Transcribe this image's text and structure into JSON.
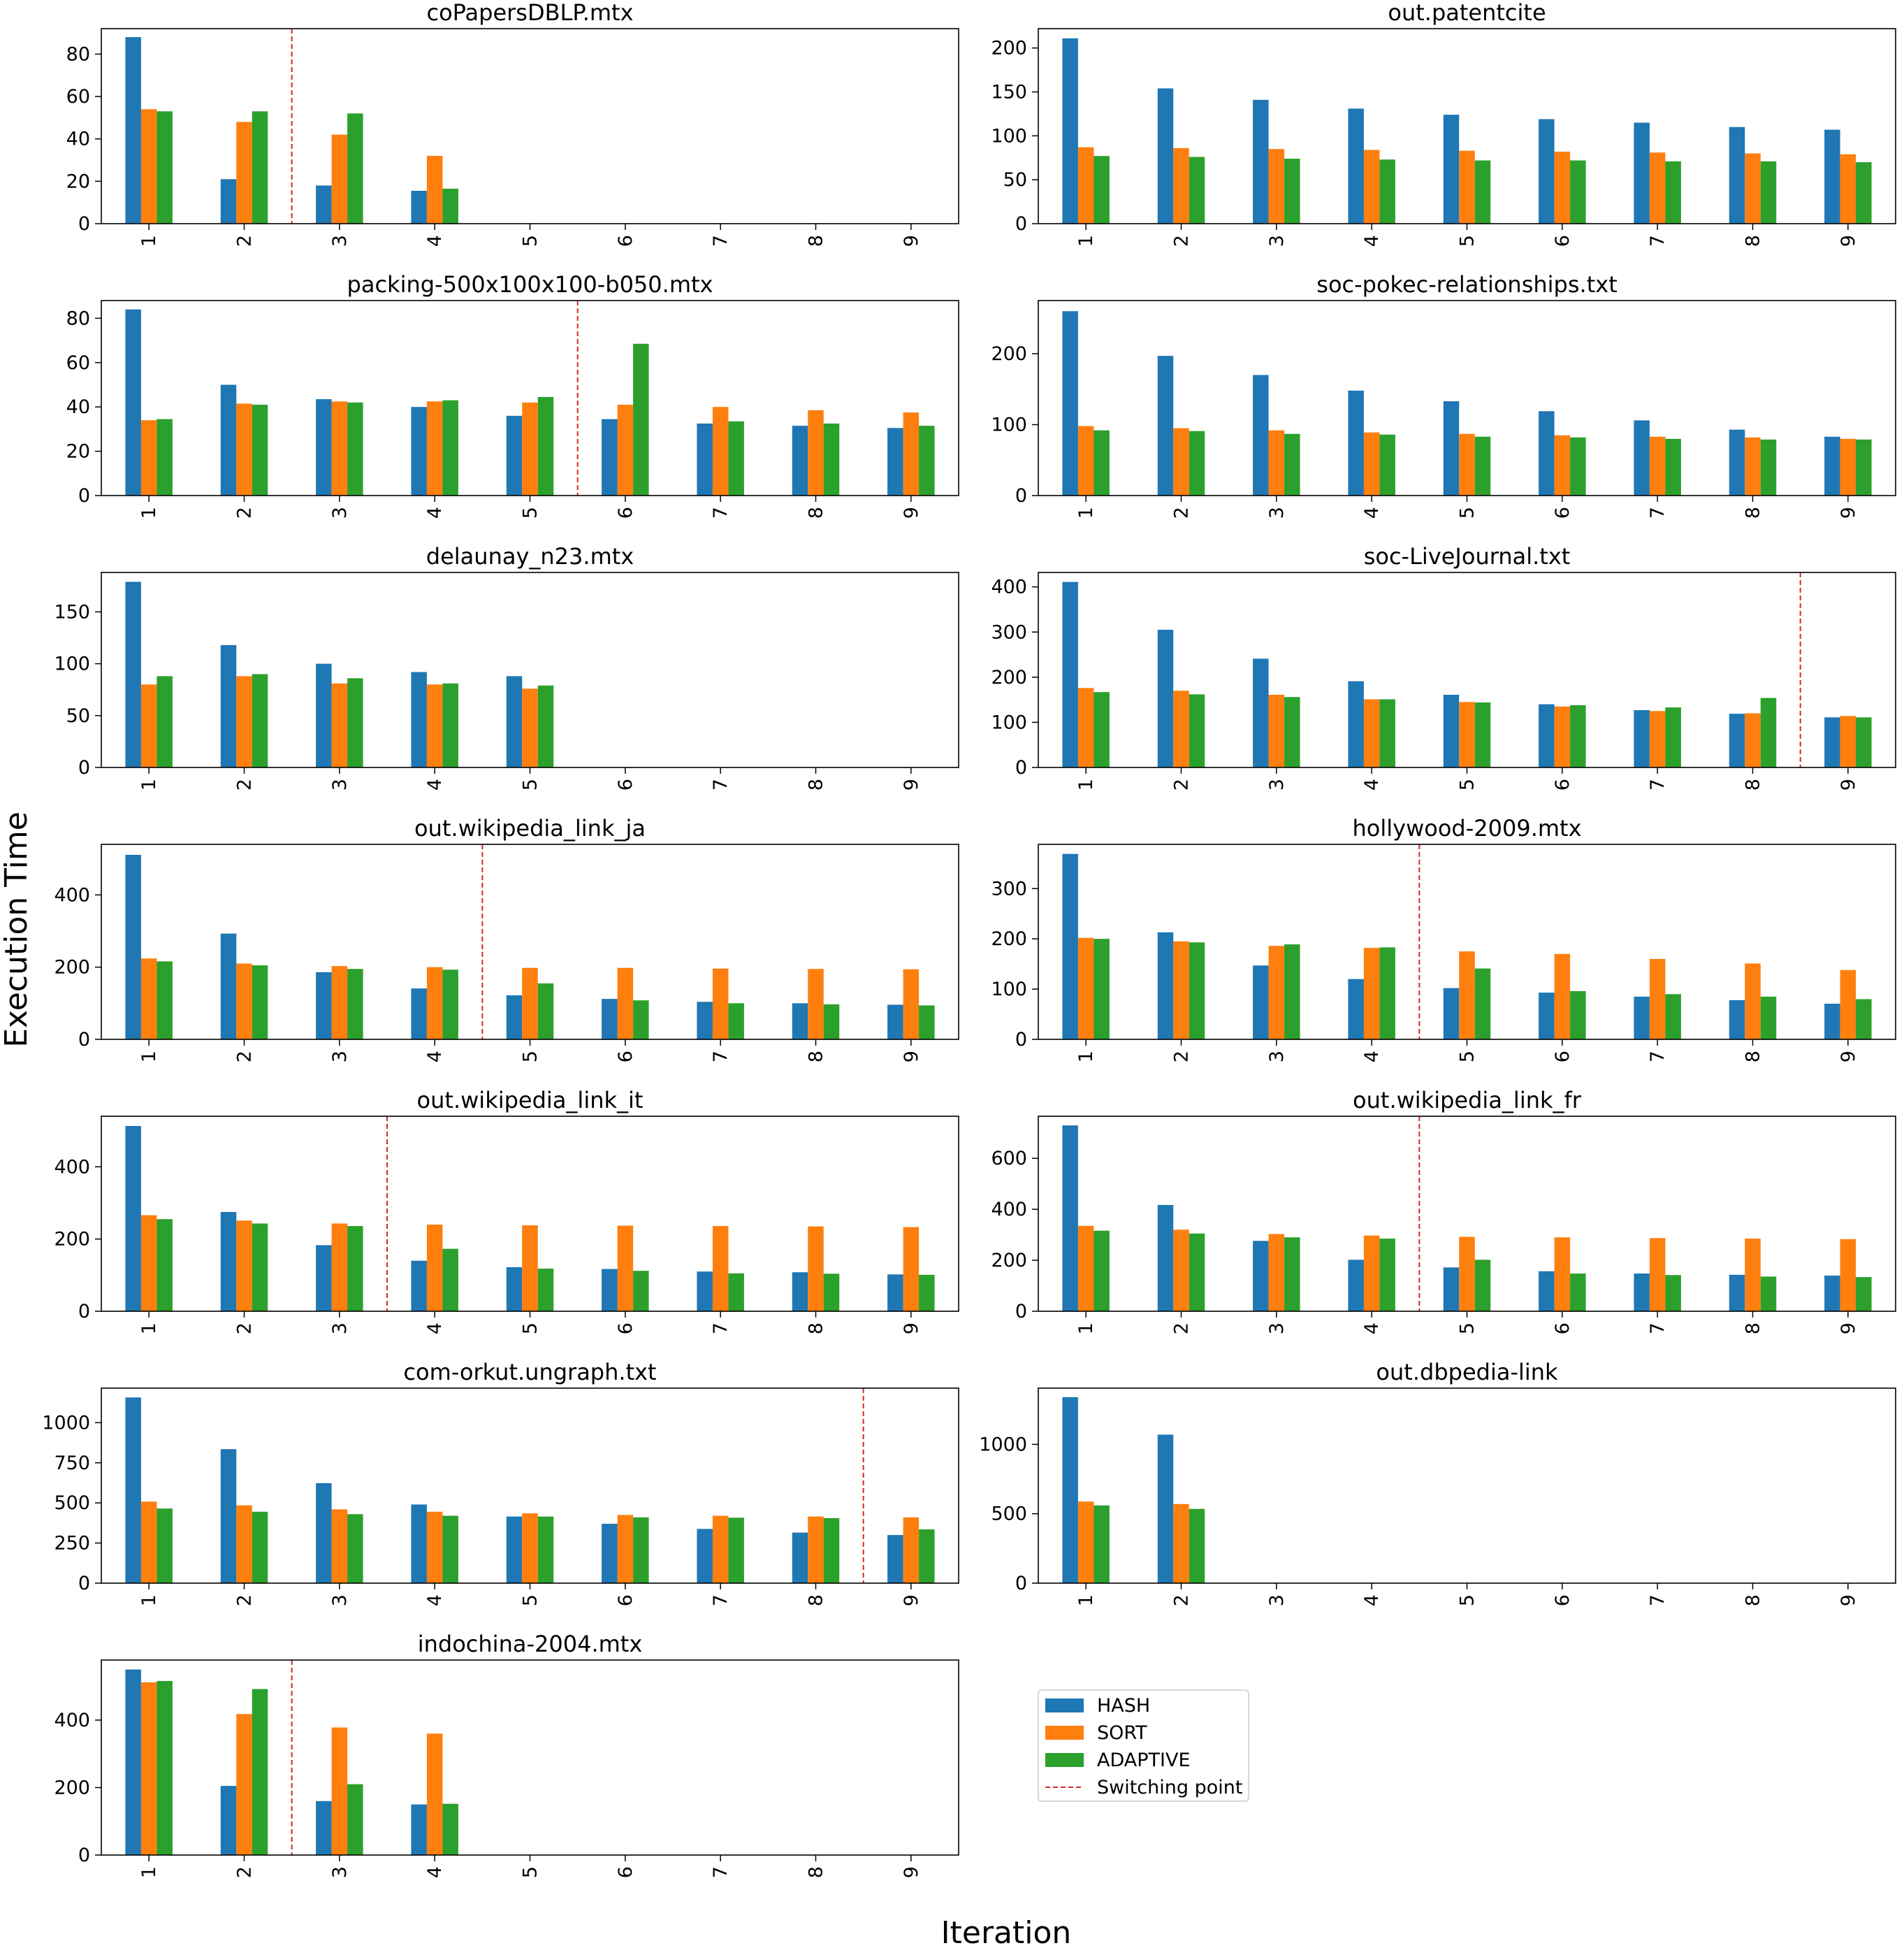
{
  "figure": {
    "ylabel": "Execution Time",
    "xlabel": "Iteration"
  },
  "legend": {
    "position": "below-right-column",
    "items": [
      {
        "label": "HASH",
        "color": "#1f77b4",
        "kind": "bar"
      },
      {
        "label": "SORT",
        "color": "#ff7f0e",
        "kind": "bar"
      },
      {
        "label": "ADAPTIVE",
        "color": "#2ca02c",
        "kind": "bar"
      },
      {
        "label": "Switching point",
        "color": "#d62728",
        "kind": "dashed-line"
      }
    ]
  },
  "chart_data": [
    {
      "type": "bar",
      "title": "coPapersDBLP.mtx",
      "categories": [
        "1",
        "2",
        "3",
        "4",
        "5",
        "6",
        "7",
        "8",
        "9"
      ],
      "ylim": [
        0,
        92
      ],
      "yticks": [
        0,
        20,
        40,
        60,
        80
      ],
      "series": [
        {
          "name": "HASH",
          "values": [
            88,
            21,
            18,
            15.5,
            0,
            0,
            0,
            0,
            0
          ]
        },
        {
          "name": "SORT",
          "values": [
            54,
            48,
            42,
            32,
            0,
            0,
            0,
            0,
            0
          ]
        },
        {
          "name": "ADAPTIVE",
          "values": [
            53,
            53,
            52,
            16.5,
            0,
            0,
            0,
            0,
            0
          ]
        }
      ],
      "switch_after": 2
    },
    {
      "type": "bar",
      "title": "out.patentcite",
      "categories": [
        "1",
        "2",
        "3",
        "4",
        "5",
        "6",
        "7",
        "8",
        "9"
      ],
      "ylim": [
        0,
        222
      ],
      "yticks": [
        0,
        50,
        100,
        150,
        200
      ],
      "series": [
        {
          "name": "HASH",
          "values": [
            211,
            154,
            141,
            131,
            124,
            119,
            115,
            110,
            107
          ]
        },
        {
          "name": "SORT",
          "values": [
            87,
            86,
            85,
            84,
            83,
            82,
            81,
            80,
            79
          ]
        },
        {
          "name": "ADAPTIVE",
          "values": [
            77,
            76,
            74,
            73,
            72,
            72,
            71,
            71,
            70
          ]
        }
      ],
      "switch_after": null
    },
    {
      "type": "bar",
      "title": "packing-500x100x100-b050.mtx",
      "categories": [
        "1",
        "2",
        "3",
        "4",
        "5",
        "6",
        "7",
        "8",
        "9"
      ],
      "ylim": [
        0,
        88
      ],
      "yticks": [
        0,
        20,
        40,
        60,
        80
      ],
      "series": [
        {
          "name": "HASH",
          "values": [
            84,
            50,
            43.5,
            40,
            36,
            34.5,
            32.5,
            31.5,
            30.5
          ]
        },
        {
          "name": "SORT",
          "values": [
            34,
            41.5,
            42.5,
            42.5,
            42,
            41,
            40,
            38.5,
            37.5
          ]
        },
        {
          "name": "ADAPTIVE",
          "values": [
            34.5,
            41,
            42,
            43,
            44.5,
            68.5,
            33.5,
            32.5,
            31.5
          ]
        }
      ],
      "switch_after": 5
    },
    {
      "type": "bar",
      "title": "soc-pokec-relationships.txt",
      "categories": [
        "1",
        "2",
        "3",
        "4",
        "5",
        "6",
        "7",
        "8",
        "9"
      ],
      "ylim": [
        0,
        275
      ],
      "yticks": [
        0,
        100,
        200
      ],
      "series": [
        {
          "name": "HASH",
          "values": [
            260,
            197,
            170,
            148,
            133,
            119,
            106,
            93,
            83
          ]
        },
        {
          "name": "SORT",
          "values": [
            98,
            95,
            92,
            89,
            87,
            85,
            83,
            82,
            80
          ]
        },
        {
          "name": "ADAPTIVE",
          "values": [
            92,
            91,
            87,
            86,
            83,
            82,
            80,
            79,
            79
          ]
        }
      ],
      "switch_after": null
    },
    {
      "type": "bar",
      "title": "delaunay_n23.mtx",
      "categories": [
        "1",
        "2",
        "3",
        "4",
        "5",
        "6",
        "7",
        "8",
        "9"
      ],
      "ylim": [
        0,
        188
      ],
      "yticks": [
        0,
        50,
        100,
        150
      ],
      "series": [
        {
          "name": "HASH",
          "values": [
            179,
            118,
            100,
            92,
            88,
            0,
            0,
            0,
            0
          ]
        },
        {
          "name": "SORT",
          "values": [
            80,
            88,
            81,
            80,
            76,
            0,
            0,
            0,
            0
          ]
        },
        {
          "name": "ADAPTIVE",
          "values": [
            88,
            90,
            86,
            81,
            79,
            0,
            0,
            0,
            0
          ]
        }
      ],
      "switch_after": null
    },
    {
      "type": "bar",
      "title": "soc-LiveJournal.txt",
      "categories": [
        "1",
        "2",
        "3",
        "4",
        "5",
        "6",
        "7",
        "8",
        "9"
      ],
      "ylim": [
        0,
        432
      ],
      "yticks": [
        0,
        100,
        200,
        300,
        400
      ],
      "series": [
        {
          "name": "HASH",
          "values": [
            411,
            305,
            241,
            191,
            161,
            140,
            127,
            119,
            111
          ]
        },
        {
          "name": "SORT",
          "values": [
            176,
            170,
            161,
            151,
            145,
            135,
            125,
            120,
            114
          ]
        },
        {
          "name": "ADAPTIVE",
          "values": [
            167,
            162,
            156,
            151,
            144,
            138,
            133,
            154,
            111
          ]
        }
      ],
      "switch_after": 8
    },
    {
      "type": "bar",
      "title": "out.wikipedia_link_ja",
      "categories": [
        "1",
        "2",
        "3",
        "4",
        "5",
        "6",
        "7",
        "8",
        "9"
      ],
      "ylim": [
        0,
        540
      ],
      "yticks": [
        0,
        200,
        400
      ],
      "series": [
        {
          "name": "HASH",
          "values": [
            511,
            293,
            186,
            141,
            122,
            112,
            104,
            100,
            96
          ]
        },
        {
          "name": "SORT",
          "values": [
            224,
            210,
            203,
            200,
            198,
            198,
            196,
            195,
            194
          ]
        },
        {
          "name": "ADAPTIVE",
          "values": [
            216,
            205,
            195,
            193,
            155,
            108,
            100,
            97,
            94
          ]
        }
      ],
      "switch_after": 4
    },
    {
      "type": "bar",
      "title": "hollywood-2009.mtx",
      "categories": [
        "1",
        "2",
        "3",
        "4",
        "5",
        "6",
        "7",
        "8",
        "9"
      ],
      "ylim": [
        0,
        388
      ],
      "yticks": [
        0,
        100,
        200,
        300
      ],
      "series": [
        {
          "name": "HASH",
          "values": [
            369,
            213,
            147,
            120,
            102,
            93,
            85,
            78,
            71
          ]
        },
        {
          "name": "SORT",
          "values": [
            202,
            195,
            186,
            182,
            175,
            170,
            160,
            151,
            138
          ]
        },
        {
          "name": "ADAPTIVE",
          "values": [
            200,
            193,
            189,
            183,
            141,
            96,
            90,
            85,
            80
          ]
        }
      ],
      "switch_after": 4
    },
    {
      "type": "bar",
      "title": "out.wikipedia_link_it",
      "categories": [
        "1",
        "2",
        "3",
        "4",
        "5",
        "6",
        "7",
        "8",
        "9"
      ],
      "ylim": [
        0,
        540
      ],
      "yticks": [
        0,
        200,
        400
      ],
      "series": [
        {
          "name": "HASH",
          "values": [
            513,
            275,
            183,
            140,
            122,
            117,
            110,
            108,
            102
          ]
        },
        {
          "name": "SORT",
          "values": [
            266,
            251,
            243,
            240,
            238,
            237,
            236,
            235,
            233
          ]
        },
        {
          "name": "ADAPTIVE",
          "values": [
            255,
            243,
            236,
            173,
            118,
            112,
            105,
            104,
            101
          ]
        }
      ],
      "switch_after": 3
    },
    {
      "type": "bar",
      "title": "out.wikipedia_link_fr",
      "categories": [
        "1",
        "2",
        "3",
        "4",
        "5",
        "6",
        "7",
        "8",
        "9"
      ],
      "ylim": [
        0,
        765
      ],
      "yticks": [
        0,
        200,
        400,
        600
      ],
      "series": [
        {
          "name": "HASH",
          "values": [
            729,
            417,
            276,
            202,
            172,
            157,
            148,
            143,
            140
          ]
        },
        {
          "name": "SORT",
          "values": [
            335,
            320,
            303,
            297,
            292,
            290,
            287,
            285,
            283
          ]
        },
        {
          "name": "ADAPTIVE",
          "values": [
            316,
            305,
            290,
            285,
            202,
            148,
            142,
            136,
            134
          ]
        }
      ],
      "switch_after": 4
    },
    {
      "type": "bar",
      "title": "com-orkut.ungraph.txt",
      "categories": [
        "1",
        "2",
        "3",
        "4",
        "5",
        "6",
        "7",
        "8",
        "9"
      ],
      "ylim": [
        0,
        1215
      ],
      "yticks": [
        0,
        250,
        500,
        750,
        1000
      ],
      "series": [
        {
          "name": "HASH",
          "values": [
            1157,
            835,
            623,
            490,
            415,
            370,
            338,
            315,
            300
          ]
        },
        {
          "name": "SORT",
          "values": [
            508,
            485,
            460,
            445,
            435,
            425,
            420,
            415,
            410
          ]
        },
        {
          "name": "ADAPTIVE",
          "values": [
            465,
            445,
            430,
            420,
            415,
            410,
            408,
            405,
            335
          ]
        }
      ],
      "switch_after": 8
    },
    {
      "type": "bar",
      "title": "out.dbpedia-link",
      "categories": [
        "1",
        "2",
        "3",
        "4",
        "5",
        "6",
        "7",
        "8",
        "9"
      ],
      "ylim": [
        0,
        1405
      ],
      "yticks": [
        0,
        500,
        1000
      ],
      "series": [
        {
          "name": "HASH",
          "values": [
            1340,
            1070,
            0,
            0,
            0,
            0,
            0,
            0,
            0
          ]
        },
        {
          "name": "SORT",
          "values": [
            588,
            570,
            0,
            0,
            0,
            0,
            0,
            0,
            0
          ]
        },
        {
          "name": "ADAPTIVE",
          "values": [
            560,
            535,
            0,
            0,
            0,
            0,
            0,
            0,
            0
          ]
        }
      ],
      "switch_after": null
    },
    {
      "type": "bar",
      "title": "indochina-2004.mtx",
      "categories": [
        "1",
        "2",
        "3",
        "4",
        "5",
        "6",
        "7",
        "8",
        "9"
      ],
      "ylim": [
        0,
        578
      ],
      "yticks": [
        0,
        200,
        400
      ],
      "series": [
        {
          "name": "HASH",
          "values": [
            550,
            205,
            160,
            150,
            0,
            0,
            0,
            0,
            0
          ]
        },
        {
          "name": "SORT",
          "values": [
            512,
            418,
            378,
            360,
            0,
            0,
            0,
            0,
            0
          ]
        },
        {
          "name": "ADAPTIVE",
          "values": [
            516,
            492,
            210,
            152,
            0,
            0,
            0,
            0,
            0
          ]
        }
      ],
      "switch_after": 2
    }
  ]
}
